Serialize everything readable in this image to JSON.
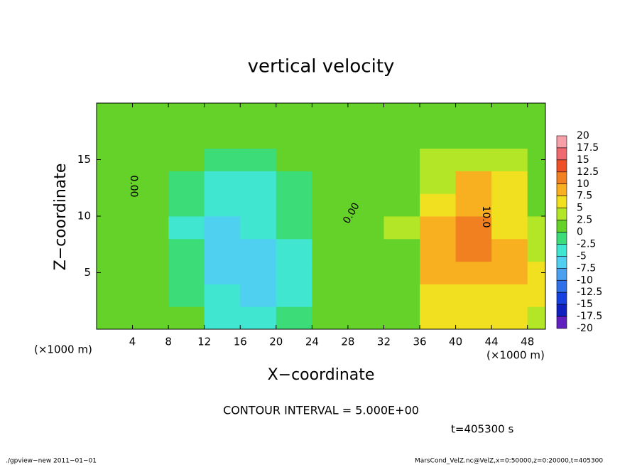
{
  "chart_data": {
    "type": "contour",
    "title": "vertical velocity",
    "x_label": "X−coordinate",
    "y_label": "Z−coordinate",
    "x_unit": "(×1000 m)",
    "x_unit_right": "(×1000 m)",
    "xlim": [
      0,
      50
    ],
    "xticks": [
      4,
      8,
      12,
      16,
      20,
      24,
      28,
      32,
      36,
      40,
      44,
      48
    ],
    "ylim": [
      0,
      20
    ],
    "yticks": [
      5,
      10,
      15
    ],
    "x": [
      2,
      6,
      10,
      14,
      18,
      22,
      26,
      30,
      34,
      38,
      42,
      46,
      50
    ],
    "y": [
      1,
      3,
      5,
      7,
      9,
      11,
      13,
      15,
      17,
      19
    ],
    "z": [
      [
        1,
        1,
        0,
        -4,
        -4,
        -2,
        2,
        1,
        2,
        5,
        5,
        5,
        4
      ],
      [
        1,
        1,
        -1,
        -5,
        -6,
        -3,
        2,
        1,
        2,
        6,
        7,
        6,
        5
      ],
      [
        1,
        1,
        -2,
        -6,
        -7,
        -4,
        1,
        1,
        2,
        8,
        9,
        8,
        5
      ],
      [
        1,
        1,
        -2,
        -7,
        -6,
        -3,
        1,
        1,
        2,
        9,
        10,
        8,
        4
      ],
      [
        1,
        1,
        -3,
        -6,
        -5,
        -2,
        1,
        1,
        3,
        8,
        10,
        7,
        3
      ],
      [
        1,
        1,
        -2,
        -5,
        -4,
        -1,
        1,
        1,
        2,
        6,
        9,
        6,
        2
      ],
      [
        1,
        1,
        -1,
        -3,
        -3,
        -1,
        1,
        1,
        2,
        4,
        8,
        5,
        2
      ],
      [
        1,
        1,
        1,
        -1,
        -1,
        1,
        1,
        1,
        2,
        3,
        4,
        3,
        2
      ],
      [
        1,
        1,
        1,
        1,
        1,
        1,
        1,
        1,
        2,
        2,
        2,
        2,
        2
      ],
      [
        1,
        1,
        1,
        1,
        1,
        1,
        1,
        1,
        2,
        2,
        2,
        2,
        2
      ]
    ],
    "levels": [
      20,
      17.5,
      15,
      12.5,
      10,
      7.5,
      5,
      2.5,
      0,
      -2.5,
      -5,
      -7.5,
      -10,
      -12.5,
      -15,
      -17.5,
      -20
    ],
    "colors": [
      "#f7a0a8",
      "#f06870",
      "#f05028",
      "#f08020",
      "#f8b020",
      "#f0e020",
      "#b4e628",
      "#64d228",
      "#3cdc78",
      "#40e6d0",
      "#50d0f0",
      "#4ca0f0",
      "#3070e8",
      "#1840e0",
      "#1020c0",
      "#6020c0"
    ],
    "contour_labels": [
      {
        "value": 0,
        "label": "0.00"
      },
      {
        "value": 0,
        "label": "0.00"
      },
      {
        "value": 10,
        "label": "10.0"
      }
    ],
    "contour_interval_text": "CONTOUR INTERVAL = 5.000E+00",
    "time_text": "t=405300 s",
    "footer_left": "./gpview−new   2011−01−01",
    "footer_right": "MarsCond_VelZ.nc@VelZ,x=0:50000,z=0:20000,t=405300"
  }
}
